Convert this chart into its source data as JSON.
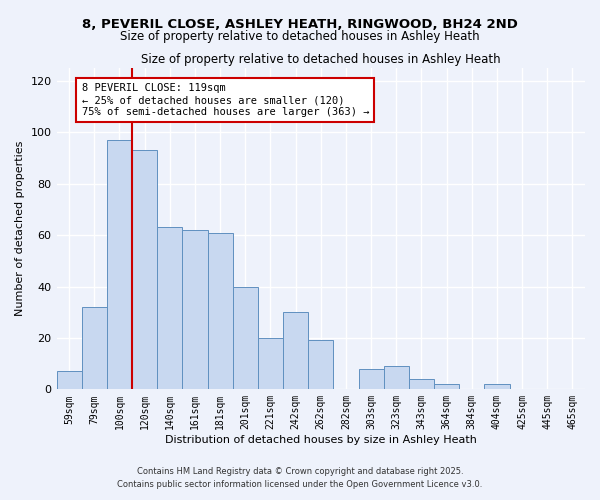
{
  "title": "8, PEVERIL CLOSE, ASHLEY HEATH, RINGWOOD, BH24 2ND",
  "subtitle": "Size of property relative to detached houses in Ashley Heath",
  "xlabel": "Distribution of detached houses by size in Ashley Heath",
  "ylabel": "Number of detached properties",
  "bar_color": "#c8d8f0",
  "bar_edge_color": "#6090c0",
  "categories": [
    "59sqm",
    "79sqm",
    "100sqm",
    "120sqm",
    "140sqm",
    "161sqm",
    "181sqm",
    "201sqm",
    "221sqm",
    "242sqm",
    "262sqm",
    "282sqm",
    "303sqm",
    "323sqm",
    "343sqm",
    "364sqm",
    "384sqm",
    "404sqm",
    "425sqm",
    "445sqm",
    "465sqm"
  ],
  "values": [
    7,
    32,
    97,
    93,
    63,
    62,
    61,
    40,
    20,
    30,
    19,
    0,
    8,
    9,
    4,
    2,
    0,
    2,
    0,
    0,
    0
  ],
  "ylim": [
    0,
    125
  ],
  "yticks": [
    0,
    20,
    40,
    60,
    80,
    100,
    120
  ],
  "vline_color": "#cc0000",
  "annotation_title": "8 PEVERIL CLOSE: 119sqm",
  "annotation_line2": "← 25% of detached houses are smaller (120)",
  "annotation_line3": "75% of semi-detached houses are larger (363) →",
  "footer_line1": "Contains HM Land Registry data © Crown copyright and database right 2025.",
  "footer_line2": "Contains public sector information licensed under the Open Government Licence v3.0.",
  "background_color": "#eef2fb",
  "grid_color": "#ffffff"
}
